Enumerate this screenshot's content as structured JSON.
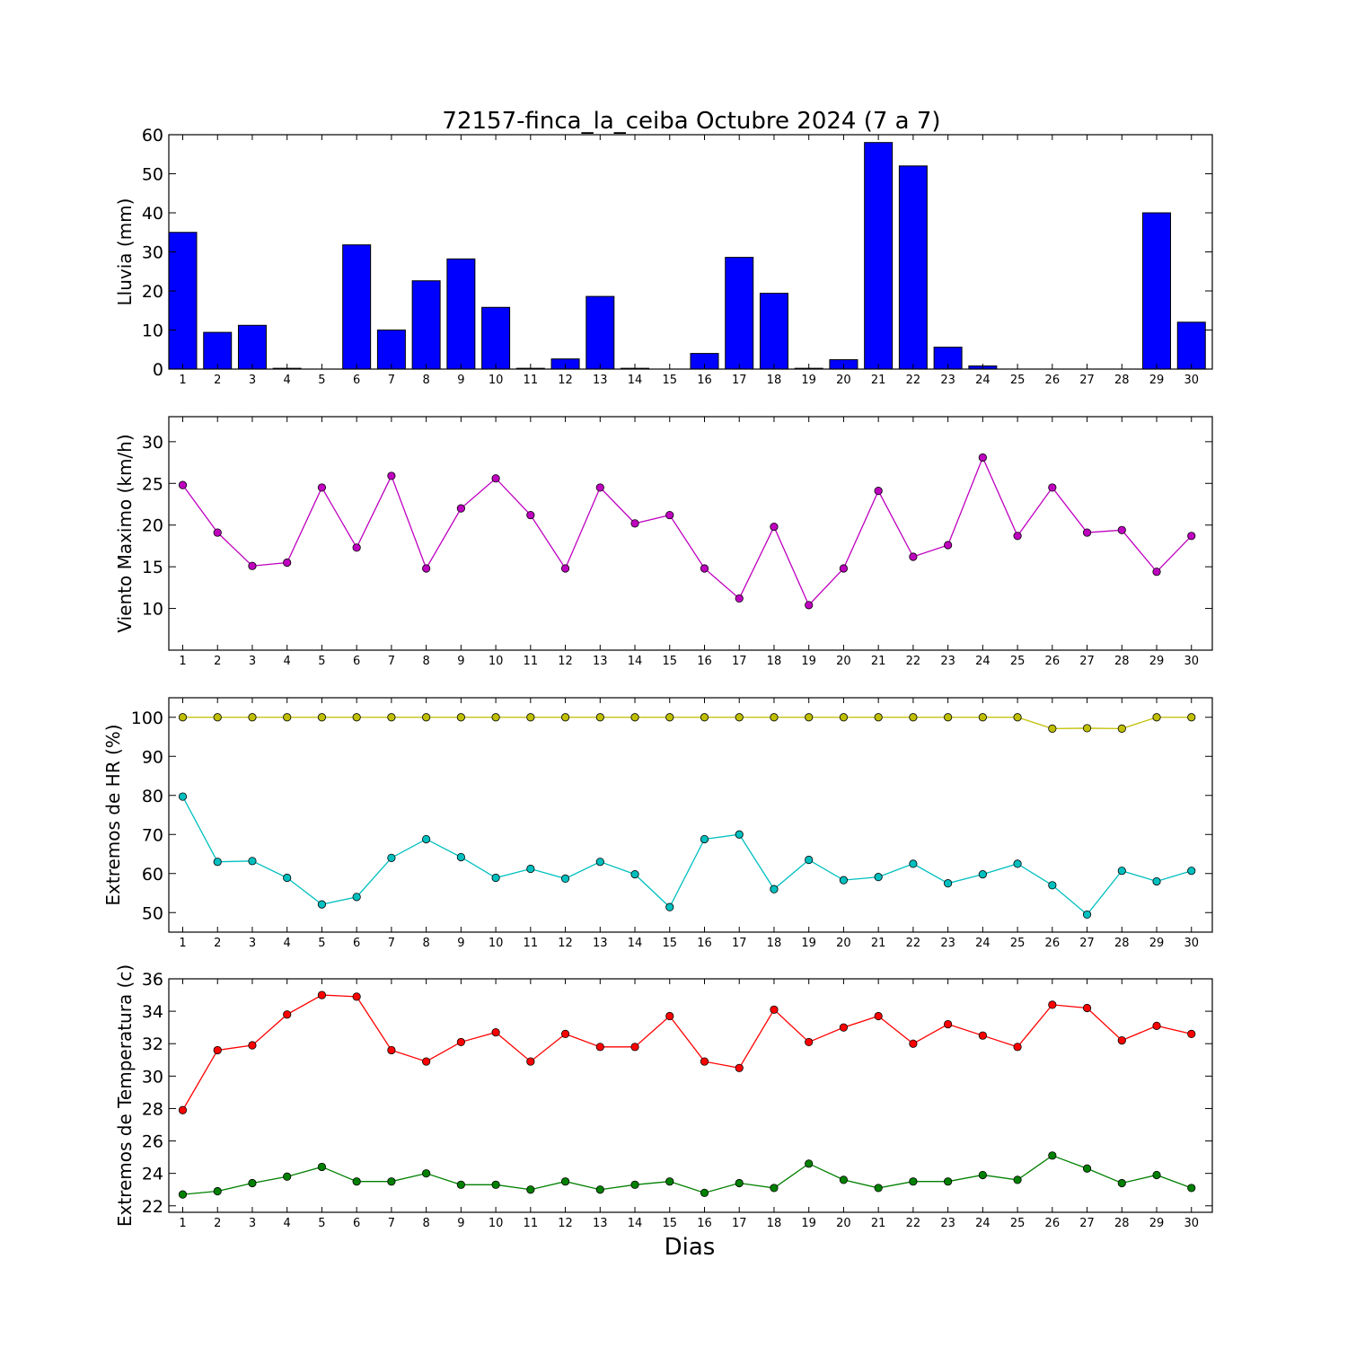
{
  "figure": {
    "title": "72157-finca_la_ceiba Octubre 2024  (7 a 7)",
    "xlabel": "Dias"
  },
  "chart_data": [
    {
      "type": "bar",
      "ylabel": "Lluvia (mm)",
      "ylim": [
        0,
        60
      ],
      "yticks": [
        0,
        10,
        20,
        30,
        40,
        50,
        60
      ],
      "x": [
        1,
        2,
        3,
        4,
        5,
        6,
        7,
        8,
        9,
        10,
        11,
        12,
        13,
        14,
        15,
        16,
        17,
        18,
        19,
        20,
        21,
        22,
        23,
        24,
        25,
        26,
        27,
        28,
        29,
        30
      ],
      "series": [
        {
          "color": "#0000ff",
          "values": [
            35.0,
            9.4,
            11.2,
            0.2,
            0,
            31.8,
            10.0,
            22.6,
            28.2,
            15.8,
            0.2,
            2.6,
            18.6,
            0.2,
            0,
            4.0,
            28.6,
            19.4,
            0.2,
            2.4,
            58.0,
            52.0,
            5.6,
            0.8,
            0,
            0,
            0,
            0,
            40.0,
            12.0
          ]
        }
      ]
    },
    {
      "type": "line",
      "ylabel": "Viento Maximo (km/h)",
      "ylim": [
        5,
        33
      ],
      "yticks": [
        10,
        15,
        20,
        25,
        30
      ],
      "x": [
        1,
        2,
        3,
        4,
        5,
        6,
        7,
        8,
        9,
        10,
        11,
        12,
        13,
        14,
        15,
        16,
        17,
        18,
        19,
        20,
        21,
        22,
        23,
        24,
        25,
        26,
        27,
        28,
        29,
        30
      ],
      "series": [
        {
          "color": "#bf00bf",
          "values": [
            24.8,
            19.1,
            15.1,
            15.5,
            24.5,
            17.3,
            25.9,
            14.8,
            22.0,
            25.6,
            21.2,
            14.8,
            24.5,
            20.2,
            21.2,
            14.8,
            11.2,
            19.8,
            10.4,
            14.8,
            24.1,
            16.2,
            17.6,
            28.1,
            18.7,
            24.5,
            19.1,
            19.4,
            14.4,
            18.7
          ]
        }
      ]
    },
    {
      "type": "line",
      "ylabel": "Extremos de HR (%)",
      "ylim": [
        45,
        105
      ],
      "yticks": [
        50,
        60,
        70,
        80,
        90,
        100
      ],
      "x": [
        1,
        2,
        3,
        4,
        5,
        6,
        7,
        8,
        9,
        10,
        11,
        12,
        13,
        14,
        15,
        16,
        17,
        18,
        19,
        20,
        21,
        22,
        23,
        24,
        25,
        26,
        27,
        28,
        29,
        30
      ],
      "series": [
        {
          "color": "#bfbf00",
          "values": [
            100,
            100,
            100,
            100,
            100,
            100,
            100,
            100,
            100,
            100,
            100,
            100,
            100,
            100,
            100,
            100,
            100,
            100,
            100,
            100,
            100,
            100,
            100,
            100,
            100,
            97.1,
            97.2,
            97.1,
            100,
            100
          ]
        },
        {
          "color": "#00bfbf",
          "values": [
            79.7,
            63.0,
            63.2,
            58.9,
            52.1,
            54.0,
            64.0,
            68.8,
            64.2,
            58.9,
            61.2,
            58.7,
            63.0,
            59.8,
            51.4,
            68.8,
            70.0,
            56.0,
            63.5,
            58.3,
            59.1,
            62.5,
            57.5,
            59.8,
            62.5,
            57.0,
            49.5,
            60.7,
            58.0,
            60.7
          ]
        }
      ]
    },
    {
      "type": "line",
      "ylabel": "Extremos de Temperatura (c)",
      "ylim": [
        21.6,
        36
      ],
      "yticks": [
        22,
        24,
        26,
        28,
        30,
        32,
        34,
        36
      ],
      "x": [
        1,
        2,
        3,
        4,
        5,
        6,
        7,
        8,
        9,
        10,
        11,
        12,
        13,
        14,
        15,
        16,
        17,
        18,
        19,
        20,
        21,
        22,
        23,
        24,
        25,
        26,
        27,
        28,
        29,
        30
      ],
      "series": [
        {
          "color": "#ff0000",
          "values": [
            27.9,
            31.6,
            31.9,
            33.8,
            35.0,
            34.9,
            31.6,
            30.9,
            32.1,
            32.7,
            30.9,
            32.6,
            31.8,
            31.8,
            33.7,
            30.9,
            30.5,
            34.1,
            32.1,
            33.0,
            33.7,
            32.0,
            33.2,
            32.5,
            31.8,
            34.4,
            34.2,
            32.2,
            33.1,
            32.6
          ]
        },
        {
          "color": "#008000",
          "values": [
            22.7,
            22.9,
            23.4,
            23.8,
            24.4,
            23.5,
            23.5,
            24.0,
            23.3,
            23.3,
            23.0,
            23.5,
            23.0,
            23.3,
            23.5,
            22.8,
            23.4,
            23.1,
            24.6,
            23.6,
            23.1,
            23.5,
            23.5,
            23.9,
            23.6,
            25.1,
            24.3,
            23.4,
            23.9,
            23.1
          ]
        }
      ]
    }
  ]
}
